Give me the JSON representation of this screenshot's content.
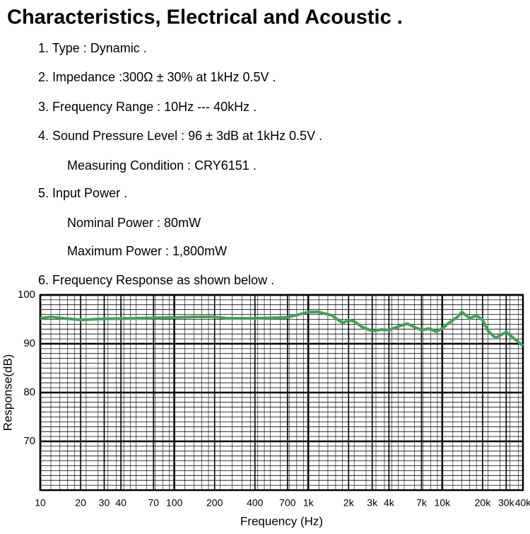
{
  "title": "Characteristics, Electrical and Acoustic .",
  "items": [
    "1. Type : Dynamic .",
    "2. Impedance :300Ω ± 30% at 1kHz 0.5V .",
    "3. Frequency Range : 10Hz --- 40kHz .",
    "4. Sound Pressure Level :  96 ± 3dB at 1kHz 0.5V .",
    "Measuring Condition : CRY6151 .",
    "5. Input Power .",
    "Nominal Power : 80mW",
    "Maximum Power : 1,800mW",
    "6. Frequency Response as shown below ."
  ],
  "chart_data": {
    "type": "line",
    "x_label": "Frequency (Hz)",
    "y_label": "Response(dB)",
    "x": [
      10,
      12,
      15,
      20,
      30,
      50,
      100,
      150,
      200,
      250,
      400,
      700,
      800,
      1000,
      1200,
      1500,
      1800,
      2000,
      2200,
      2500,
      3000,
      3500,
      4000,
      5000,
      5500,
      6000,
      7000,
      8000,
      9000,
      10000,
      11000,
      13000,
      14000,
      16000,
      18000,
      20000,
      22000,
      25000,
      30000,
      35000,
      40000
    ],
    "values": [
      95.2,
      95.5,
      95.2,
      94.9,
      95.1,
      95.2,
      95.4,
      95.5,
      95.5,
      95.2,
      95.2,
      95.4,
      95.8,
      96.5,
      96.5,
      95.8,
      94.3,
      94.8,
      94.6,
      93.5,
      92.6,
      92.9,
      92.8,
      93.8,
      94.1,
      93.6,
      92.8,
      93.1,
      92.5,
      93.1,
      94.1,
      95.5,
      96.5,
      95.2,
      95.8,
      94.9,
      92.6,
      91.2,
      92.4,
      90.9,
      89.6
    ],
    "color": "#3aa655",
    "xscale": "log",
    "grid": true,
    "xlim": [
      10,
      40000
    ],
    "ylim": [
      60,
      100
    ],
    "yticks": [
      70,
      80,
      90,
      100
    ],
    "xticks": [
      10,
      20,
      30,
      40,
      70,
      100,
      200,
      400,
      700,
      {
        "value": 1000,
        "label": "1k"
      },
      {
        "value": 2000,
        "label": "2k"
      },
      {
        "value": 3000,
        "label": "3k"
      },
      {
        "value": 4000,
        "label": "4k"
      },
      {
        "value": 7000,
        "label": "7k"
      },
      {
        "value": 10000,
        "label": "10k"
      },
      {
        "value": 20000,
        "label": "20k"
      },
      {
        "value": 30000,
        "label": "30k"
      },
      {
        "value": 40000,
        "label": "40k"
      }
    ]
  }
}
